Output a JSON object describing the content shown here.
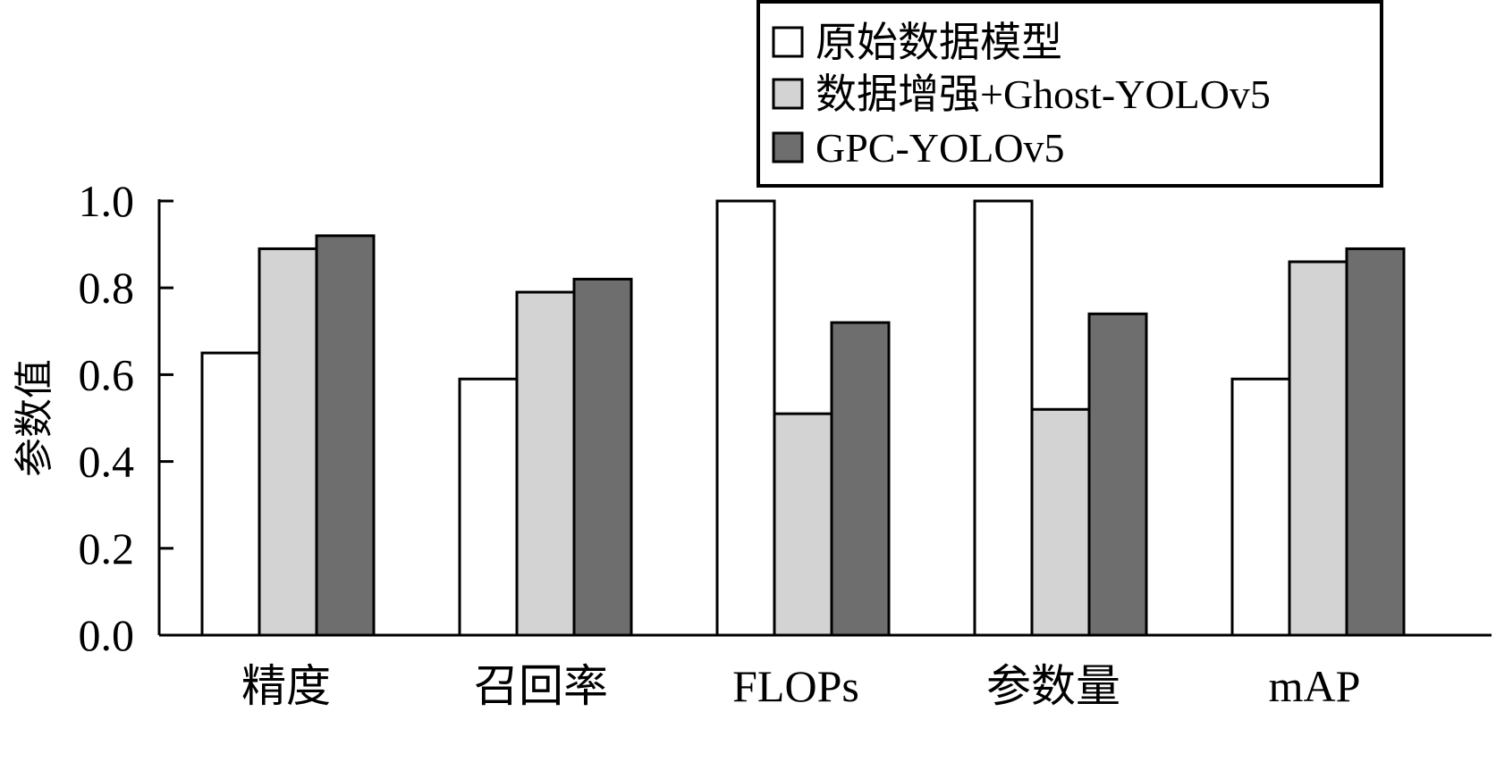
{
  "chart_data": {
    "type": "bar",
    "ylabel": "参数值",
    "xlabel": "",
    "ylim": [
      0,
      1.0
    ],
    "yticks": [
      "0.0",
      "0.2",
      "0.4",
      "0.6",
      "0.8",
      "1.0"
    ],
    "ytick_values": [
      0,
      0.2,
      0.4,
      0.6,
      0.8,
      1.0
    ],
    "categories": [
      "精度",
      "召回率",
      "FLOPs",
      "参数量",
      "mAP"
    ],
    "series": [
      {
        "name": "原始数据模型",
        "color": "#ffffff",
        "values": [
          0.65,
          0.59,
          1.0,
          1.0,
          0.59
        ]
      },
      {
        "name": "数据增强+Ghost-YOLOv5",
        "color": "#d3d3d3",
        "values": [
          0.89,
          0.79,
          0.51,
          0.52,
          0.86
        ]
      },
      {
        "name": "GPC-YOLOv5",
        "color": "#6e6e6e",
        "values": [
          0.92,
          0.82,
          0.72,
          0.74,
          0.89
        ]
      }
    ],
    "legend_position": "top-right",
    "grid": false
  }
}
